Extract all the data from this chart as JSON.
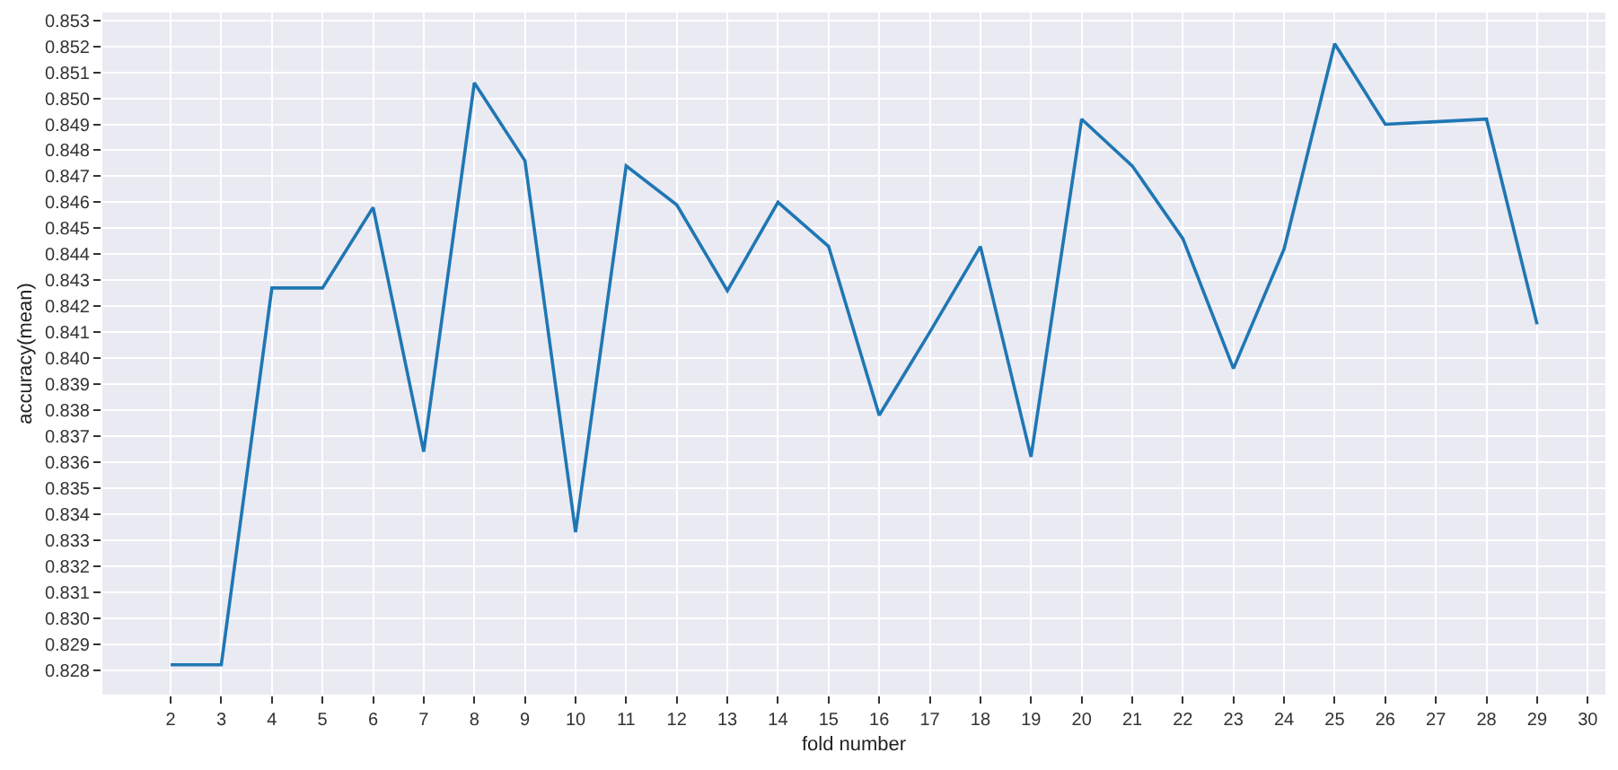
{
  "chart_data": {
    "type": "line",
    "xlabel": "fold number",
    "ylabel": "accuracy(mean)",
    "x": [
      2,
      3,
      4,
      5,
      6,
      7,
      8,
      9,
      10,
      11,
      12,
      13,
      14,
      15,
      16,
      17,
      18,
      19,
      20,
      21,
      22,
      23,
      24,
      25,
      26,
      27,
      28,
      29
    ],
    "series": [
      {
        "color": "#1f77b4",
        "values": [
          0.8282,
          0.8282,
          0.8427,
          0.8427,
          0.8458,
          0.8364,
          0.8506,
          0.8476,
          0.8333,
          0.8474,
          0.8459,
          0.8426,
          0.846,
          0.8443,
          0.8378,
          0.841,
          0.8443,
          0.8362,
          0.8492,
          0.8474,
          0.8446,
          0.8396,
          0.8442,
          0.8521,
          0.849,
          0.8491,
          0.8492,
          0.8413
        ]
      }
    ],
    "xlim": [
      0.65,
      30.35
    ],
    "ylim": [
      0.82705,
      0.8533
    ],
    "xticks": [
      2,
      3,
      4,
      5,
      6,
      7,
      8,
      9,
      10,
      11,
      12,
      13,
      14,
      15,
      16,
      17,
      18,
      19,
      20,
      21,
      22,
      23,
      24,
      25,
      26,
      27,
      28,
      29,
      30
    ],
    "yticks": [
      0.828,
      0.829,
      {
        "value": 0.83,
        "label": "0.830"
      },
      0.831,
      0.832,
      0.833,
      0.834,
      0.835,
      0.836,
      0.837,
      0.838,
      0.839,
      {
        "value": 0.84,
        "label": "0.840"
      },
      0.841,
      0.842,
      0.843,
      0.844,
      0.845,
      0.846,
      0.847,
      0.848,
      0.849,
      {
        "value": 0.85,
        "label": "0.850"
      },
      0.851,
      0.852,
      0.853
    ],
    "grid": true,
    "legend": false,
    "marker": "none",
    "line_style": "solid"
  }
}
